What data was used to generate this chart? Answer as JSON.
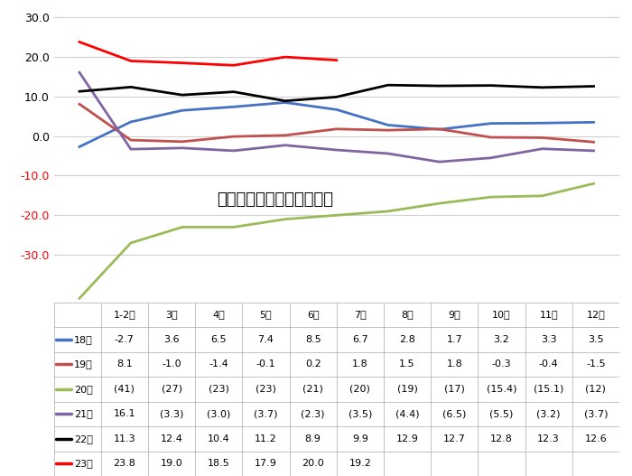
{
  "x_labels": [
    "1-2月",
    "3月",
    "4月",
    "5月",
    "6月",
    "7月",
    "8月",
    "9月",
    "10月",
    "11月",
    "12月"
  ],
  "series": {
    "18年": [
      -2.7,
      3.6,
      6.5,
      7.4,
      8.5,
      6.7,
      2.8,
      1.7,
      3.2,
      3.3,
      3.5
    ],
    "19年": [
      8.1,
      -1.0,
      -1.4,
      -0.1,
      0.2,
      1.8,
      1.5,
      1.8,
      -0.3,
      -0.4,
      -1.5
    ],
    "20年": [
      -41,
      -27,
      -23,
      -23,
      -21,
      -20,
      -19,
      -17,
      -15.4,
      -15.1,
      -12
    ],
    "21年": [
      16.1,
      -3.3,
      -3.0,
      -3.7,
      -2.3,
      -3.5,
      -4.4,
      -6.5,
      -5.5,
      -3.2,
      -3.7
    ],
    "22年": [
      11.3,
      12.4,
      10.4,
      11.2,
      8.9,
      9.9,
      12.9,
      12.7,
      12.8,
      12.3,
      12.6
    ],
    "23年": [
      23.8,
      19.0,
      18.5,
      17.9,
      20.0,
      19.2,
      null,
      null,
      null,
      null,
      null
    ]
  },
  "colors": {
    "18年": "#4472C4",
    "19年": "#C0504D",
    "20年": "#9BBB59",
    "21年": "#8064A2",
    "22年": "#000000",
    "23年": "#FF0000"
  },
  "title": "汽车投资额年累计增速走势",
  "ylim": [
    -42,
    32
  ],
  "yticks": [
    -30,
    -20,
    -10,
    0,
    10,
    20,
    30
  ],
  "background_color": "#FFFFFF",
  "grid_color": "#D0D0D0",
  "table_data": {
    "18年": [
      "-2.7",
      "3.6",
      "6.5",
      "7.4",
      "8.5",
      "6.7",
      "2.8",
      "1.7",
      "3.2",
      "3.3",
      "3.5"
    ],
    "19年": [
      "8.1",
      "-1.0",
      "-1.4",
      "-0.1",
      "0.2",
      "1.8",
      "1.5",
      "1.8",
      "-0.3",
      "-0.4",
      "-1.5"
    ],
    "20年": [
      "(41)",
      "(27)",
      "(23)",
      "(23)",
      "(21)",
      "(20)",
      "(19)",
      "(17)",
      "(15.4)",
      "(15.1)",
      "(12)"
    ],
    "21年": [
      "16.1",
      "(3.3)",
      "(3.0)",
      "(3.7)",
      "(2.3)",
      "(3.5)",
      "(4.4)",
      "(6.5)",
      "(5.5)",
      "(3.2)",
      "(3.7)"
    ],
    "22年": [
      "11.3",
      "12.4",
      "10.4",
      "11.2",
      "8.9",
      "9.9",
      "12.9",
      "12.7",
      "12.8",
      "12.3",
      "12.6"
    ],
    "23年": [
      "23.8",
      "19.0",
      "18.5",
      "17.9",
      "20.0",
      "19.2",
      "",
      "",
      "",
      "",
      ""
    ]
  },
  "row_order": [
    "18年",
    "19年",
    "20年",
    "21年",
    "22年",
    "23年"
  ]
}
